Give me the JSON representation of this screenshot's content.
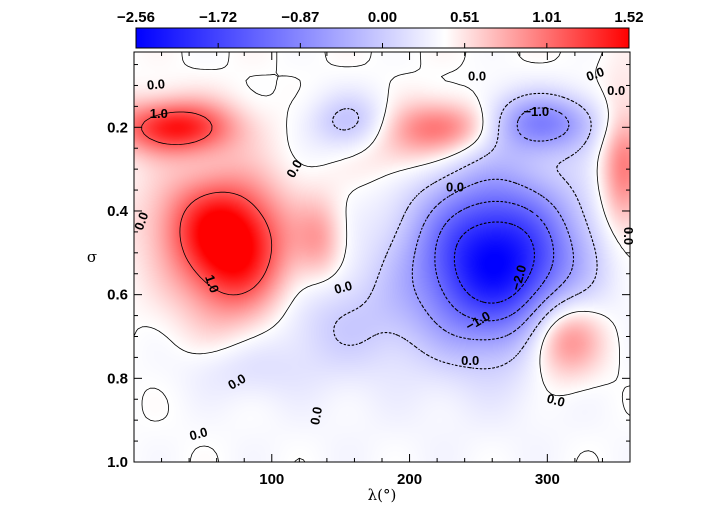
{
  "chart_data": {
    "type": "heatmap",
    "title": "",
    "xlabel": "λ(°)",
    "ylabel": "σ",
    "xlim": [
      0,
      360
    ],
    "ylim": [
      1.0,
      0.02
    ],
    "x_ticks": [
      {
        "value": 100,
        "label": "100"
      },
      {
        "value": 200,
        "label": "200"
      },
      {
        "value": 300,
        "label": "300"
      }
    ],
    "y_ticks": [
      {
        "value": 0.2,
        "label": "0.2"
      },
      {
        "value": 0.4,
        "label": "0.4"
      },
      {
        "value": 0.6,
        "label": "0.6"
      },
      {
        "value": 0.8,
        "label": "0.8"
      },
      {
        "value": 1.0,
        "label": "1.0"
      }
    ],
    "colorbar": {
      "min": -2.56,
      "max": 1.52,
      "tick_values": [
        -2.56,
        -1.72,
        -0.87,
        0.0,
        0.51,
        1.01,
        1.52
      ],
      "tick_labels": [
        "−2.56",
        "−1.72",
        "−0.87",
        "0.00",
        "0.51",
        "1.01",
        "1.52"
      ],
      "low_color": "#0000ff",
      "mid_color": "#ffffff",
      "high_color": "#ff0000"
    },
    "features": [
      {
        "lon": 30,
        "sigma": 0.2,
        "value": 1.4,
        "slon": 30,
        "ssig": 0.045
      },
      {
        "lon": 72,
        "sigma": 0.5,
        "value": 1.52,
        "slon": 28,
        "ssig": 0.11
      },
      {
        "lon": 50,
        "sigma": 0.42,
        "value": 0.6,
        "slon": 30,
        "ssig": 0.08
      },
      {
        "lon": 135,
        "sigma": 0.47,
        "value": 0.5,
        "slon": 12,
        "ssig": 0.07
      },
      {
        "lon": 228,
        "sigma": 0.2,
        "value": 0.9,
        "slon": 28,
        "ssig": 0.045
      },
      {
        "lon": 312,
        "sigma": 0.7,
        "value": 1.05,
        "slon": 20,
        "ssig": 0.07
      },
      {
        "lon": 355,
        "sigma": 0.3,
        "value": 0.8,
        "slon": 12,
        "ssig": 0.12
      },
      {
        "lon": 190,
        "sigma": 0.25,
        "value": 0.35,
        "slon": 25,
        "ssig": 0.06
      },
      {
        "lon": 262,
        "sigma": 0.52,
        "value": -2.56,
        "slon": 42,
        "ssig": 0.14
      },
      {
        "lon": 295,
        "sigma": 0.19,
        "value": -1.2,
        "slon": 30,
        "ssig": 0.05
      },
      {
        "lon": 158,
        "sigma": 0.19,
        "value": -0.65,
        "slon": 22,
        "ssig": 0.05
      },
      {
        "lon": 150,
        "sigma": 0.67,
        "value": -0.45,
        "slon": 38,
        "ssig": 0.09
      },
      {
        "lon": 80,
        "sigma": 0.78,
        "value": -0.25,
        "slon": 30,
        "ssig": 0.05
      },
      {
        "lon": 200,
        "sigma": 0.9,
        "value": -0.07,
        "slon": 130,
        "ssig": 0.15
      }
    ],
    "contours": [
      {
        "level": -2.0,
        "style": "dotted"
      },
      {
        "level": -1.5,
        "style": "dotted"
      },
      {
        "level": -1.0,
        "style": "dotted"
      },
      {
        "level": -0.5,
        "style": "dotted"
      },
      {
        "level": 0.0,
        "style": "solid"
      },
      {
        "level": 1.0,
        "style": "solid"
      }
    ],
    "contour_labels": [
      {
        "text": "0.0",
        "lon": 16,
        "sigma": 0.1,
        "angle": -5
      },
      {
        "text": "1.0",
        "lon": 18,
        "sigma": 0.17,
        "angle": 0
      },
      {
        "text": "0.0",
        "lon": 6,
        "sigma": 0.425,
        "angle": -70
      },
      {
        "text": "1.0",
        "lon": 56,
        "sigma": 0.575,
        "angle": 70
      },
      {
        "text": "0.0",
        "lon": 117,
        "sigma": 0.3,
        "angle": -60
      },
      {
        "text": "0.0",
        "lon": 152,
        "sigma": 0.585,
        "angle": -15
      },
      {
        "text": "0.0",
        "lon": 249,
        "sigma": 0.08,
        "angle": 0
      },
      {
        "text": "0.0",
        "lon": 335,
        "sigma": 0.075,
        "angle": -20
      },
      {
        "text": "0.0",
        "lon": 350,
        "sigma": 0.115,
        "angle": 0
      },
      {
        "text": "−1.0",
        "lon": 292,
        "sigma": 0.165,
        "angle": 0
      },
      {
        "text": "0.0",
        "lon": 233,
        "sigma": 0.345,
        "angle": 0
      },
      {
        "text": "−2.0",
        "lon": 280,
        "sigma": 0.56,
        "angle": -75
      },
      {
        "text": "−1.0",
        "lon": 250,
        "sigma": 0.665,
        "angle": -30
      },
      {
        "text": "0.0",
        "lon": 244,
        "sigma": 0.76,
        "angle": 0
      },
      {
        "text": "0.0",
        "lon": 358,
        "sigma": 0.46,
        "angle": 90
      },
      {
        "text": "0.0",
        "lon": 75,
        "sigma": 0.81,
        "angle": -30
      },
      {
        "text": "0.0",
        "lon": 306,
        "sigma": 0.855,
        "angle": 15
      },
      {
        "text": "0.0",
        "lon": 133,
        "sigma": 0.89,
        "angle": -80
      },
      {
        "text": "0.0",
        "lon": 47,
        "sigma": 0.935,
        "angle": -15
      }
    ]
  }
}
